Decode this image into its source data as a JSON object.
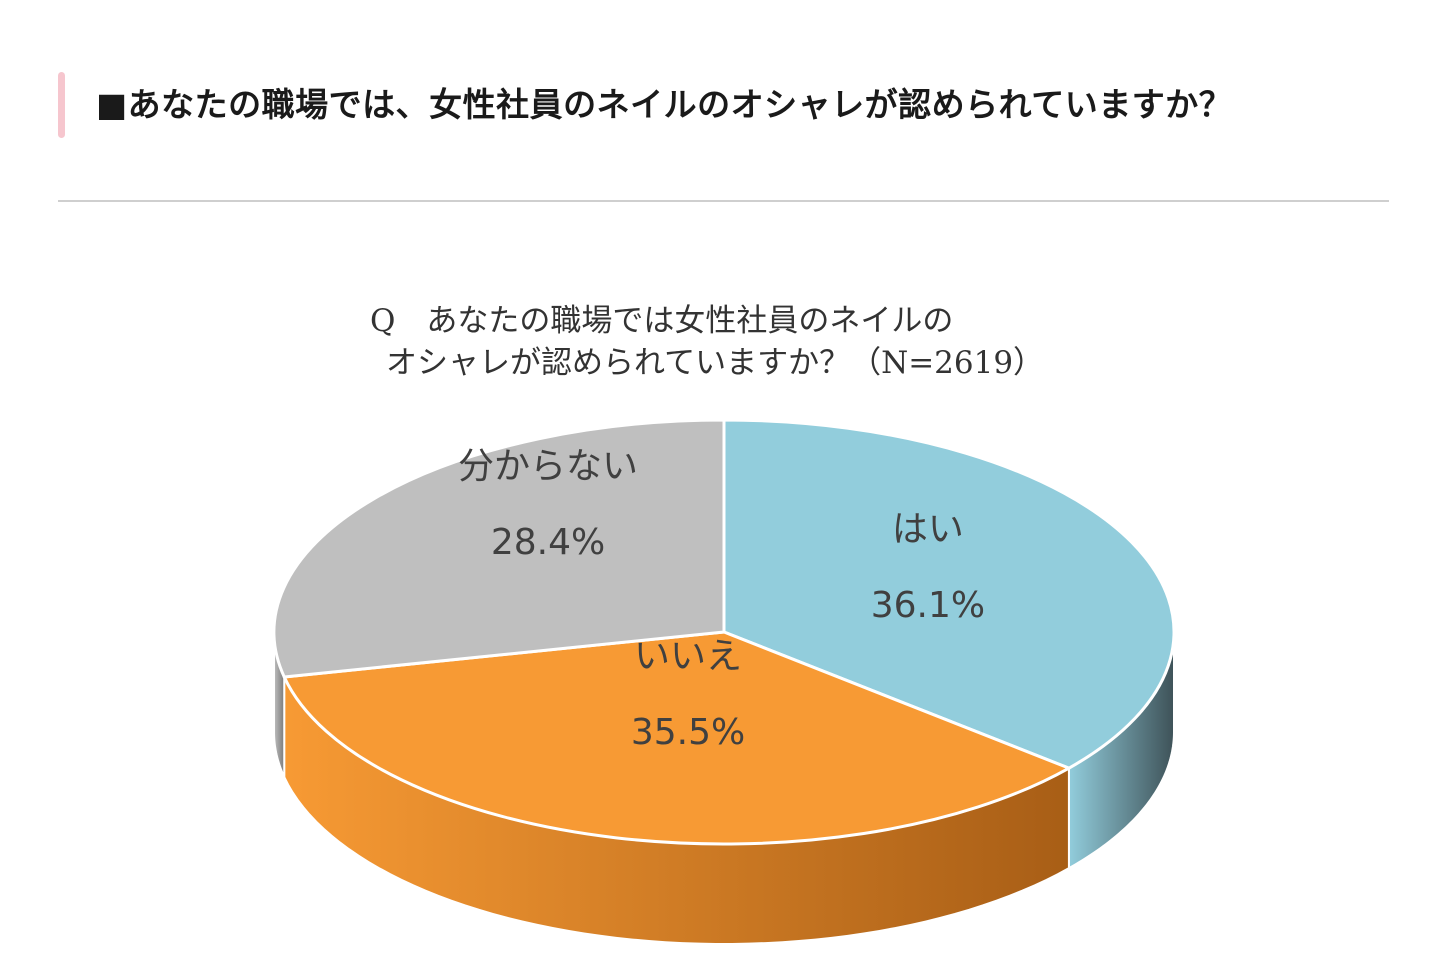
{
  "heading": {
    "text": "■あなたの職場では、女性社員のネイルのオシャレが認められていますか？",
    "accent_color": "#f6c6ce"
  },
  "chart_data": {
    "type": "pie",
    "title_line1": "Q　あなたの職場では女性社員のネイルの",
    "title_line2": "オシャレが認められていますか？（N=2619）",
    "slices": [
      {
        "label": "はい",
        "value": 36.1,
        "display": "36.1%",
        "color": "#92cddc",
        "side_color": "#3e5258"
      },
      {
        "label": "いいえ",
        "value": 35.5,
        "display": "35.5%",
        "color": "#f79a34",
        "side_color": "#a85e16"
      },
      {
        "label": "分からない",
        "value": 28.4,
        "display": "28.4%",
        "color": "#bfbfbf",
        "side_color": "#7a7a7a"
      }
    ],
    "label_color": "#404040"
  }
}
